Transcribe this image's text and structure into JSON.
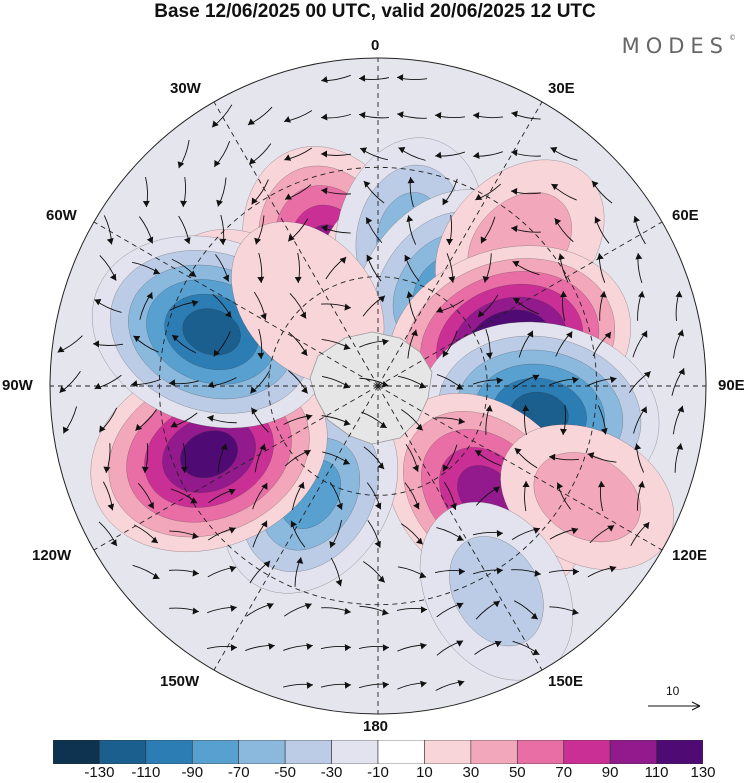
{
  "title": "Base 12/06/2025 00 UTC, valid 20/06/2025 12 UTC",
  "brand": "MODES",
  "brand_mark": "©",
  "longitude_labels": {
    "lon_0": "0",
    "lon_30e": "30E",
    "lon_60e": "60E",
    "lon_90e": "90E",
    "lon_120e": "120E",
    "lon_150e": "150E",
    "lon_180": "180",
    "lon_150w": "150W",
    "lon_120w": "120W",
    "lon_90w": "90W",
    "lon_60w": "60W",
    "lon_30w": "30W"
  },
  "reference_vector": {
    "label": "10"
  },
  "colorbar": {
    "ticks": [
      "-130",
      "-110",
      "-90",
      "-70",
      "-50",
      "-30",
      "-10",
      "10",
      "30",
      "50",
      "70",
      "90",
      "110",
      "130"
    ],
    "colors": [
      "#0d3350",
      "#1a5f8e",
      "#2d7db5",
      "#58a0cf",
      "#8bb9de",
      "#bccce6",
      "#e3e3ef",
      "#ffffff",
      "#f8d5d8",
      "#f2a7bb",
      "#ea6ea6",
      "#c92f95",
      "#921a8c",
      "#4f0b73"
    ]
  },
  "anomaly_centers": [
    {
      "lon": -20,
      "lat": 52,
      "value": 95
    },
    {
      "lon": -57,
      "lat": 48,
      "value": 25
    },
    {
      "lon": 5,
      "lat": 64,
      "value": 55
    },
    {
      "lon": 12,
      "lat": 48,
      "value": -55
    },
    {
      "lon": 35,
      "lat": 58,
      "value": -85
    },
    {
      "lon": 45,
      "lat": 35,
      "value": 45
    },
    {
      "lon": 72,
      "lat": 52,
      "value": 130
    },
    {
      "lon": 100,
      "lat": 45,
      "value": -120
    },
    {
      "lon": 135,
      "lat": 48,
      "value": 100
    },
    {
      "lon": 118,
      "lat": 25,
      "value": 30
    },
    {
      "lon": 150,
      "lat": 25,
      "value": -40
    },
    {
      "lon": -148,
      "lat": 55,
      "value": -75
    },
    {
      "lon": -112,
      "lat": 40,
      "value": 125
    },
    {
      "lon": -72,
      "lat": 42,
      "value": -125
    },
    {
      "lon": -40,
      "lat": 60,
      "value": 25
    }
  ]
}
